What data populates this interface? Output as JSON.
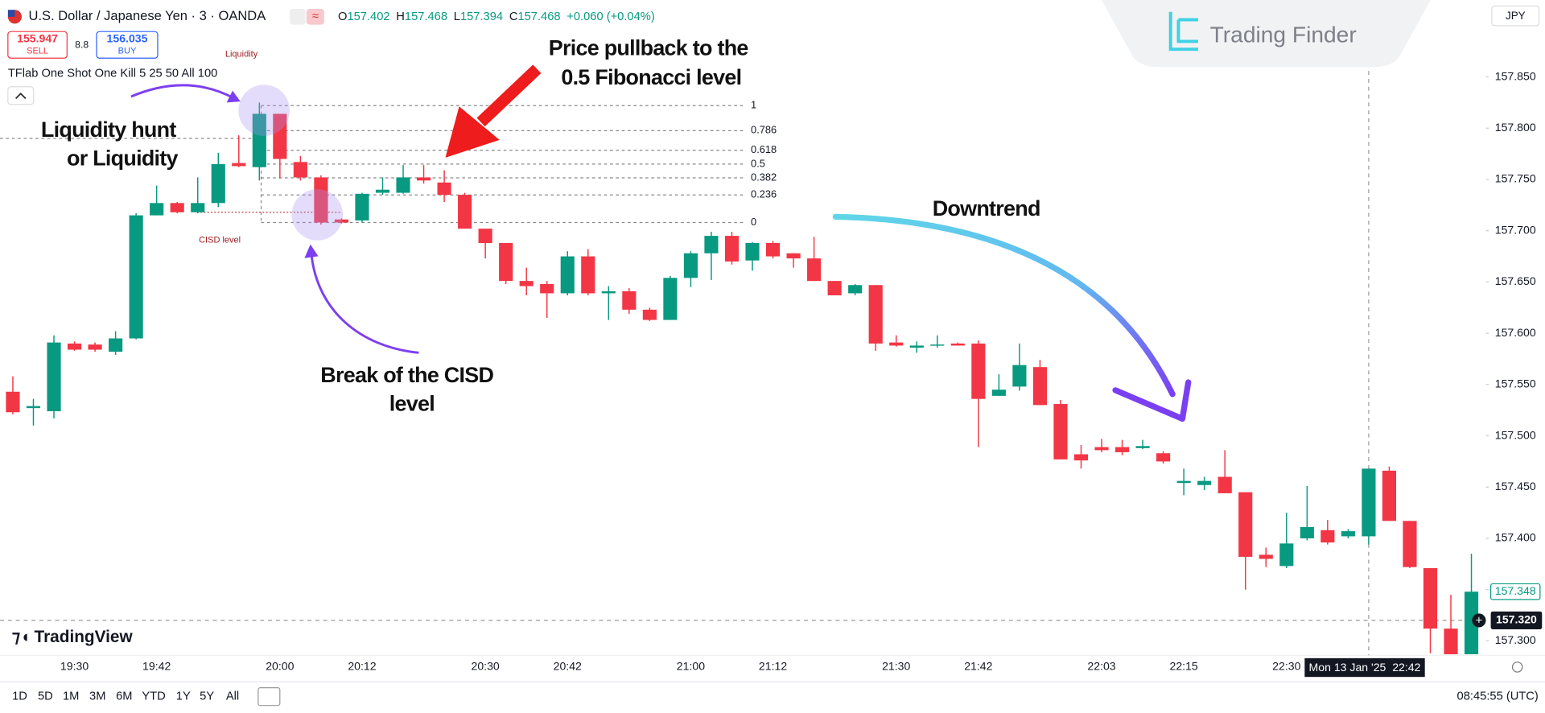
{
  "header": {
    "symbol": "U.S. Dollar / Japanese Yen · 3 · OANDA",
    "ohlc": [
      {
        "key": "O",
        "value": "157.402"
      },
      {
        "key": "H",
        "value": "157.468"
      },
      {
        "key": "L",
        "value": "157.394"
      },
      {
        "key": "C",
        "value": "157.468"
      }
    ],
    "change": "+0.060 (+0.04%)",
    "sell_price": "155.947",
    "sell": "SELL",
    "spread": "8.8",
    "buy_price": "156.035",
    "buy": "BUY",
    "indicator": "TFlab One Shot One Kill 5 25 50 All 100",
    "currency": "JPY"
  },
  "watermark": "Trading Finder",
  "brand": "TradingView",
  "annotations": {
    "liquidity_hunt": [
      "Liquidity hunt",
      "or Liquidity"
    ],
    "pullback": [
      "Price pullback to the",
      "0.5 Fibonacci level"
    ],
    "cisd_break": [
      "Break of the CISD",
      "level"
    ],
    "downtrend": "Downtrend",
    "liquidity": "Liquidity",
    "cisd_level": "CISD level"
  },
  "toolbar": {
    "ranges": [
      "1D",
      "5D",
      "1M",
      "3M",
      "6M",
      "YTD",
      "1Y",
      "5Y",
      "All"
    ],
    "clock": "08:45:55 (UTC)"
  },
  "chart_data": {
    "type": "candlestick",
    "up_color": "#089981",
    "down_color": "#f23645",
    "grid": false,
    "categories": [
      null,
      null,
      null,
      "19:30",
      null,
      null,
      null,
      "19:42",
      null,
      null,
      null,
      null,
      null,
      "20:00",
      null,
      null,
      null,
      "20:12",
      null,
      null,
      null,
      null,
      null,
      "20:30",
      null,
      null,
      null,
      "20:42",
      null,
      null,
      null,
      null,
      null,
      "21:00",
      null,
      null,
      null,
      "21:12",
      null,
      null,
      null,
      null,
      null,
      "21:30",
      null,
      null,
      null,
      "21:42",
      null,
      null,
      null,
      null,
      null,
      "22:03",
      null,
      null,
      null,
      "22:15",
      null,
      null,
      null,
      null,
      "22:30",
      null,
      null,
      null,
      "Mon 13 Jan '25  22:42",
      null,
      null,
      null,
      null,
      null
    ],
    "open": [
      157.543,
      157.527,
      157.524,
      157.59,
      157.589,
      157.582,
      157.595,
      157.715,
      157.727,
      157.718,
      157.727,
      157.766,
      157.762,
      157.814,
      157.767,
      157.752,
      157.711,
      157.71,
      157.737,
      157.737,
      157.752,
      157.747,
      157.735,
      157.702,
      157.688,
      157.651,
      157.648,
      157.639,
      157.675,
      157.639,
      157.641,
      157.623,
      157.613,
      157.654,
      157.678,
      157.695,
      157.671,
      157.688,
      157.678,
      157.673,
      157.651,
      157.639,
      157.647,
      157.591,
      157.586,
      157.588,
      157.59,
      157.59,
      157.539,
      157.548,
      157.567,
      157.531,
      157.482,
      157.489,
      157.489,
      157.488,
      157.483,
      157.454,
      157.452,
      157.46,
      157.445,
      157.384,
      157.373,
      157.4,
      157.408,
      157.402,
      157.402,
      157.466,
      157.417,
      157.371,
      157.312,
      157.287
    ],
    "high": [
      157.558,
      157.536,
      157.598,
      157.592,
      157.591,
      157.602,
      157.717,
      157.744,
      157.728,
      157.752,
      157.776,
      157.793,
      157.825,
      157.814,
      157.773,
      157.754,
      157.712,
      157.737,
      157.752,
      157.764,
      157.764,
      157.759,
      157.737,
      157.702,
      157.688,
      157.664,
      157.651,
      157.68,
      157.682,
      157.646,
      157.644,
      157.625,
      157.656,
      157.68,
      157.699,
      157.699,
      157.689,
      157.69,
      157.678,
      157.694,
      157.651,
      157.648,
      157.647,
      157.598,
      157.592,
      157.598,
      157.591,
      157.593,
      157.56,
      157.59,
      157.574,
      157.535,
      157.491,
      157.497,
      157.496,
      157.496,
      157.485,
      157.468,
      157.46,
      157.486,
      157.445,
      157.391,
      157.425,
      157.451,
      157.418,
      157.409,
      157.468,
      157.47,
      157.417,
      157.371,
      157.345,
      157.385
    ],
    "low": [
      157.521,
      157.51,
      157.517,
      157.583,
      157.582,
      157.579,
      157.594,
      157.715,
      157.717,
      157.717,
      157.723,
      157.762,
      157.749,
      157.751,
      157.749,
      157.706,
      157.707,
      157.708,
      157.735,
      157.736,
      157.746,
      157.728,
      157.702,
      157.673,
      157.648,
      157.637,
      157.615,
      157.637,
      157.637,
      157.613,
      157.619,
      157.612,
      157.613,
      157.645,
      157.652,
      157.667,
      157.661,
      157.673,
      157.664,
      157.651,
      157.637,
      157.637,
      157.583,
      157.587,
      157.581,
      157.586,
      157.588,
      157.489,
      157.539,
      157.544,
      157.53,
      157.477,
      157.468,
      157.484,
      157.481,
      157.487,
      157.473,
      157.442,
      157.447,
      157.444,
      157.35,
      157.372,
      157.371,
      157.398,
      157.394,
      157.4,
      157.394,
      157.417,
      157.371,
      157.288,
      157.287,
      157.287
    ],
    "close": [
      157.523,
      157.529,
      157.591,
      157.584,
      157.584,
      157.595,
      157.715,
      157.727,
      157.718,
      157.727,
      157.765,
      157.763,
      157.814,
      157.77,
      157.752,
      157.708,
      157.708,
      157.736,
      157.74,
      157.752,
      157.749,
      157.735,
      157.702,
      157.688,
      157.651,
      157.646,
      157.639,
      157.675,
      157.639,
      157.641,
      157.623,
      157.613,
      157.654,
      157.678,
      157.695,
      157.67,
      157.688,
      157.675,
      157.673,
      157.651,
      157.637,
      157.647,
      157.59,
      157.588,
      157.588,
      157.589,
      157.588,
      157.536,
      157.545,
      157.569,
      157.53,
      157.477,
      157.476,
      157.486,
      157.484,
      157.49,
      157.475,
      157.456,
      157.456,
      157.444,
      157.382,
      157.38,
      157.395,
      157.411,
      157.396,
      157.407,
      157.468,
      157.417,
      157.372,
      157.312,
      157.287,
      157.348
    ],
    "ylim": [
      157.286,
      157.925
    ],
    "yticks": [
      {
        "value": 157.85,
        "label": "157.850"
      },
      {
        "value": 157.8,
        "label": "157.800"
      },
      {
        "value": 157.75,
        "label": "157.750"
      },
      {
        "value": 157.7,
        "label": "157.700"
      },
      {
        "value": 157.65,
        "label": "157.650"
      },
      {
        "value": 157.6,
        "label": "157.600"
      },
      {
        "value": 157.55,
        "label": "157.550"
      },
      {
        "value": 157.5,
        "label": "157.500"
      },
      {
        "value": 157.45,
        "label": "157.450"
      },
      {
        "value": 157.4,
        "label": "157.400"
      },
      {
        "value": 157.35,
        "label": "157.350"
      },
      {
        "value": 157.3,
        "label": "157.300"
      }
    ],
    "fib": {
      "high": 157.822,
      "low": 157.708,
      "levels": [
        1,
        0.786,
        0.618,
        0.5,
        0.382,
        0.236,
        0
      ]
    },
    "liquidity_level": 157.79,
    "cisd_level": 157.718,
    "last_price": 157.348,
    "crosshair_price": {
      "value": 157.32,
      "label": "157.320"
    }
  }
}
